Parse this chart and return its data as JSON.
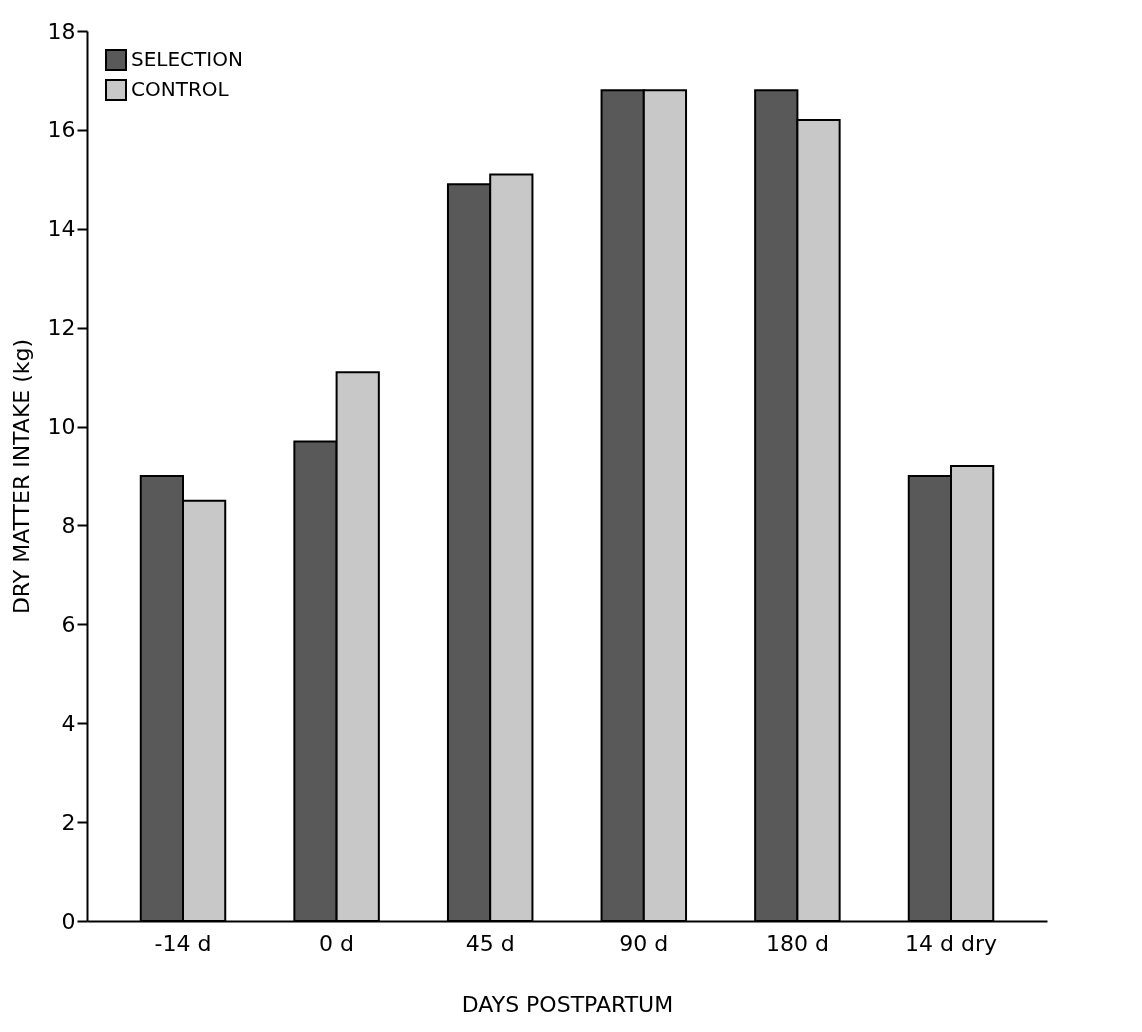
{
  "chart_data": {
    "type": "bar",
    "xlabel": "DAYS POSTPARTUM",
    "ylabel": "DRY MATTER INTAKE (kg)",
    "categories": [
      "-14 d",
      "0 d",
      "45 d",
      "90 d",
      "180 d",
      "14 d dry"
    ],
    "series": [
      {
        "name": "SELECTION",
        "color": "#595959",
        "values": [
          9.0,
          9.7,
          14.9,
          16.8,
          16.8,
          9.0
        ]
      },
      {
        "name": "CONTROL",
        "color": "#c8c8c8",
        "values": [
          8.5,
          11.1,
          15.1,
          16.8,
          16.2,
          9.2
        ]
      }
    ],
    "ylim": [
      0,
      18
    ],
    "yticks": [
      0,
      2,
      4,
      6,
      8,
      10,
      12,
      14,
      16,
      18
    ],
    "grid": false,
    "legend": "top left"
  }
}
